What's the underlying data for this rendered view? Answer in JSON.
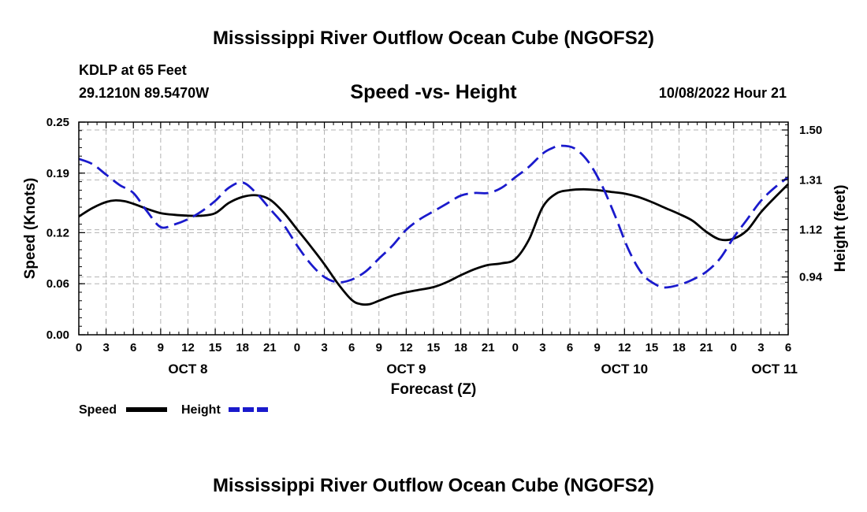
{
  "header": {
    "title": "Mississippi River Outflow Ocean Cube (NGOFS2)",
    "station": "KDLP at 65 Feet",
    "coords": "29.1210N  89.5470W",
    "datetime": "10/08/2022 Hour 21"
  },
  "footer": {
    "title": "Mississippi River Outflow Ocean Cube (NGOFS2)"
  },
  "legend": {
    "speed_label": "Speed",
    "height_label": "Height"
  },
  "colors": {
    "speed": "#000000",
    "height": "#1a1acc",
    "grid": "#b3b3b3"
  },
  "chart_data": {
    "type": "line",
    "title": "Speed -vs- Height",
    "xlabel": "Forecast (Z)",
    "ylabel": "Speed (Knots)",
    "y2label": "Height (feet)",
    "x_unit": "hours since OCT 8 00Z",
    "xlim": [
      0,
      78
    ],
    "ylim": [
      0,
      0.25
    ],
    "y2lim": [
      0.72,
      1.53
    ],
    "x_ticks": [
      0,
      3,
      6,
      9,
      12,
      15,
      18,
      21,
      24,
      27,
      30,
      33,
      36,
      39,
      42,
      45,
      48,
      51,
      54,
      57,
      60,
      63,
      66,
      69,
      72,
      75,
      78
    ],
    "x_tick_labels": [
      "0",
      "3",
      "6",
      "9",
      "12",
      "15",
      "18",
      "21",
      "0",
      "3",
      "6",
      "9",
      "12",
      "15",
      "18",
      "21",
      "0",
      "3",
      "6",
      "9",
      "12",
      "15",
      "18",
      "21",
      "0",
      "3",
      "6"
    ],
    "y_ticks": [
      0.0,
      0.06,
      0.12,
      0.19,
      0.25
    ],
    "y_tick_labels": [
      "0.00",
      "0.06",
      "0.12",
      "0.19",
      "0.25"
    ],
    "y2_ticks": [
      0.94,
      1.12,
      1.31,
      1.5
    ],
    "y2_tick_labels": [
      "0.94",
      "1.12",
      "1.31",
      "1.50"
    ],
    "day_labels": [
      {
        "x": 12,
        "label": "OCT 8"
      },
      {
        "x": 36,
        "label": "OCT 9"
      },
      {
        "x": 60,
        "label": "OCT 10"
      },
      {
        "x": 76.5,
        "label": "OCT 11"
      }
    ],
    "series": [
      {
        "name": "Speed",
        "axis": "left",
        "style": "solid",
        "x": [
          0,
          1.5,
          3,
          4,
          5,
          6,
          7.5,
          9,
          10.5,
          12,
          13.5,
          15,
          16.5,
          18,
          19.5,
          21,
          22.5,
          24,
          25.5,
          27,
          28.5,
          30,
          31,
          32,
          33,
          34.5,
          36,
          37.5,
          39,
          40.5,
          42,
          43.5,
          45,
          46.5,
          48,
          49.5,
          51,
          52.5,
          54,
          55.5,
          57,
          58.5,
          60,
          61.5,
          63,
          64.5,
          66,
          67.5,
          69,
          70.5,
          72,
          73.5,
          75,
          76.5,
          78
        ],
        "values": [
          0.139,
          0.149,
          0.156,
          0.158,
          0.157,
          0.154,
          0.148,
          0.143,
          0.141,
          0.14,
          0.14,
          0.143,
          0.155,
          0.162,
          0.164,
          0.159,
          0.144,
          0.124,
          0.104,
          0.083,
          0.06,
          0.041,
          0.036,
          0.036,
          0.04,
          0.046,
          0.05,
          0.053,
          0.056,
          0.062,
          0.07,
          0.077,
          0.082,
          0.084,
          0.089,
          0.112,
          0.15,
          0.166,
          0.17,
          0.171,
          0.17,
          0.168,
          0.166,
          0.162,
          0.156,
          0.149,
          0.142,
          0.134,
          0.121,
          0.112,
          0.113,
          0.123,
          0.144,
          0.161,
          0.177
        ]
      },
      {
        "name": "Height",
        "axis": "right",
        "style": "dashed",
        "x": [
          0,
          1.5,
          3,
          4.5,
          6,
          7.5,
          9,
          10.5,
          12,
          13.5,
          15,
          16.5,
          18,
          19.5,
          21,
          22.5,
          24,
          25.5,
          27,
          28.5,
          30,
          31.5,
          33,
          34.5,
          36,
          37.5,
          39,
          40.5,
          42,
          43.5,
          45,
          46.5,
          48,
          49.5,
          51,
          52,
          53,
          54.5,
          56,
          57.5,
          59,
          60.5,
          62,
          63.5,
          64.5,
          66,
          67.5,
          69,
          70.5,
          72,
          73.5,
          75,
          76.5,
          78
        ],
        "values": [
          1.39,
          1.37,
          1.33,
          1.29,
          1.26,
          1.19,
          1.13,
          1.14,
          1.16,
          1.19,
          1.23,
          1.28,
          1.3,
          1.26,
          1.2,
          1.14,
          1.06,
          0.99,
          0.94,
          0.92,
          0.93,
          0.96,
          1.01,
          1.06,
          1.12,
          1.16,
          1.19,
          1.22,
          1.25,
          1.26,
          1.26,
          1.28,
          1.32,
          1.36,
          1.41,
          1.43,
          1.44,
          1.43,
          1.38,
          1.29,
          1.17,
          1.04,
          0.95,
          0.91,
          0.9,
          0.91,
          0.93,
          0.96,
          1.01,
          1.09,
          1.16,
          1.23,
          1.28,
          1.32
        ]
      }
    ]
  }
}
